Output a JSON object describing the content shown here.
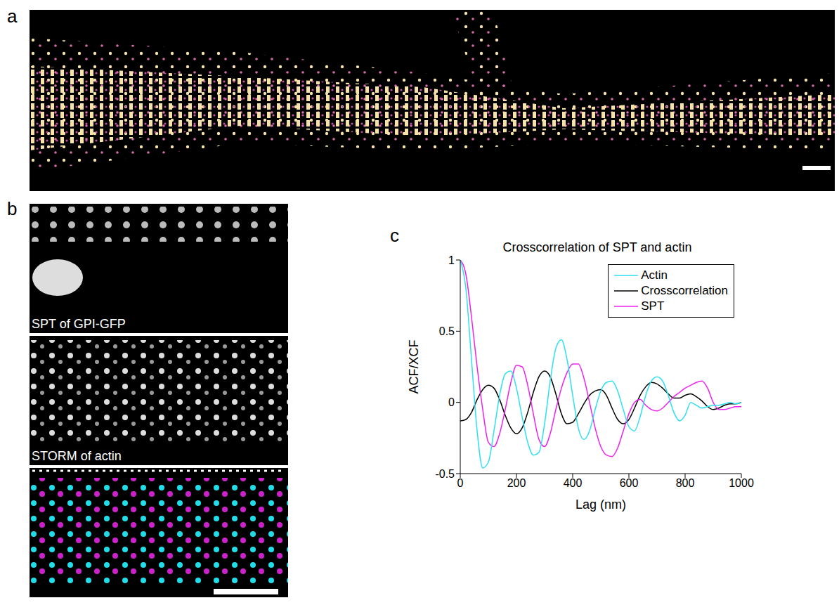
{
  "panels": {
    "a": {
      "label": "a"
    },
    "b": {
      "label": "b",
      "captions": [
        "SPT of GPI-GFP",
        "STORM of actin"
      ]
    },
    "c": {
      "label": "c"
    }
  },
  "chart_data": {
    "type": "line",
    "title": "Crosscorrelation of SPT and actin",
    "x_label": "Lag (nm)",
    "y_label": "ACF/XCF",
    "xlim": [
      0,
      1000
    ],
    "xticks": [
      0,
      200,
      400,
      600,
      800,
      1000
    ],
    "ylim": [
      -0.5,
      1
    ],
    "yticks": [
      -0.5,
      0,
      0.5,
      1
    ],
    "grid": false,
    "legend": "upper right",
    "x": [
      0,
      20,
      40,
      60,
      80,
      100,
      120,
      140,
      160,
      180,
      200,
      220,
      240,
      260,
      280,
      300,
      320,
      340,
      360,
      380,
      400,
      420,
      440,
      460,
      480,
      500,
      520,
      540,
      560,
      580,
      600,
      620,
      640,
      660,
      680,
      700,
      720,
      740,
      760,
      780,
      800,
      820,
      840,
      860,
      880,
      900,
      920,
      940,
      960,
      980,
      1000
    ],
    "series": [
      {
        "name": "Crosscorrelation",
        "color": "#000000",
        "values": [
          -0.13,
          -0.12,
          -0.07,
          0.02,
          0.09,
          0.12,
          0.1,
          0.02,
          -0.09,
          -0.18,
          -0.22,
          -0.18,
          -0.07,
          0.07,
          0.18,
          0.22,
          0.18,
          0.06,
          -0.08,
          -0.15,
          -0.14,
          -0.08,
          -0.01,
          0.05,
          0.08,
          0.09,
          0.05,
          -0.04,
          -0.12,
          -0.15,
          -0.12,
          -0.04,
          0.05,
          0.11,
          0.14,
          0.13,
          0.1,
          0.06,
          0.03,
          0.03,
          0.05,
          0.06,
          0.04,
          0.01,
          -0.03,
          -0.05,
          -0.04,
          -0.02,
          -0.01,
          -0.01,
          0.0
        ]
      },
      {
        "name": "SPT",
        "color": "#ee22ee",
        "values": [
          1.0,
          0.9,
          0.6,
          0.25,
          -0.05,
          -0.28,
          -0.31,
          -0.22,
          -0.05,
          0.14,
          0.26,
          0.25,
          0.12,
          -0.08,
          -0.26,
          -0.31,
          -0.22,
          -0.05,
          0.1,
          0.21,
          0.27,
          0.27,
          0.17,
          0.0,
          -0.18,
          -0.31,
          -0.37,
          -0.38,
          -0.32,
          -0.2,
          -0.08,
          0.0,
          0.02,
          -0.02,
          -0.05,
          -0.06,
          -0.04,
          0.0,
          0.04,
          0.07,
          0.1,
          0.12,
          0.14,
          0.15,
          0.1,
          0.0,
          -0.05,
          -0.05,
          -0.04,
          -0.03,
          -0.03
        ]
      },
      {
        "name": "Actin",
        "color": "#2ee0f0",
        "values": [
          1.0,
          0.8,
          0.3,
          -0.2,
          -0.46,
          -0.42,
          -0.2,
          0.05,
          0.2,
          0.22,
          0.1,
          -0.1,
          -0.28,
          -0.37,
          -0.35,
          -0.15,
          0.15,
          0.38,
          0.44,
          0.3,
          0.05,
          -0.18,
          -0.26,
          -0.2,
          -0.05,
          0.08,
          0.14,
          0.15,
          0.08,
          -0.05,
          -0.17,
          -0.2,
          -0.1,
          0.05,
          0.15,
          0.18,
          0.15,
          0.05,
          -0.07,
          -0.13,
          -0.09,
          0.0,
          -0.02,
          -0.04,
          -0.03,
          -0.02,
          -0.02,
          -0.01,
          0.0,
          -0.01,
          0.0
        ]
      }
    ]
  }
}
